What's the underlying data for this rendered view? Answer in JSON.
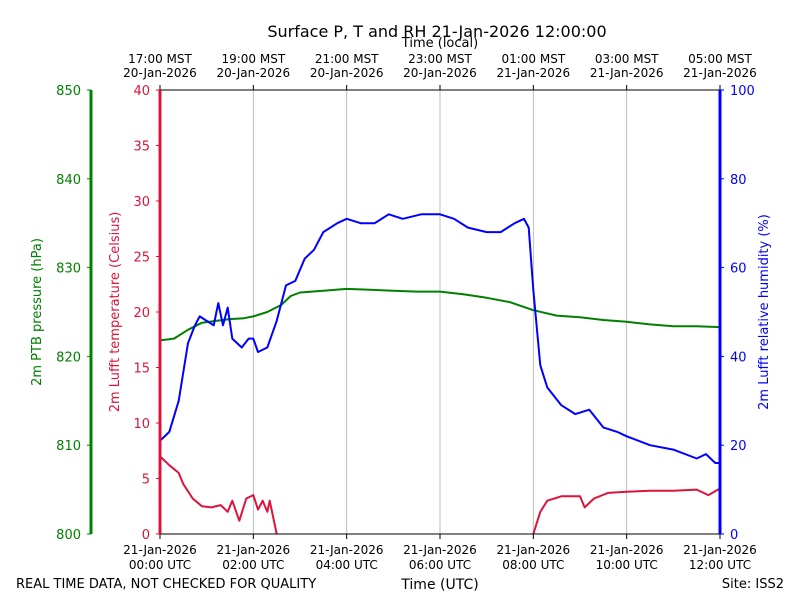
{
  "chart_data": {
    "type": "line",
    "title": "Surface P, T and RH 21-Jan-2026 12:00:00",
    "top_axis_label": "Time (local)",
    "bottom_axis_label": "Time (UTC)",
    "footer_left": "REAL TIME DATA, NOT CHECKED FOR QUALITY",
    "footer_right": "Site: ISS2",
    "x_range_hours_utc": [
      0,
      12
    ],
    "top_ticks": [
      {
        "hour": 0,
        "line1": "17:00 MST",
        "line2": "20-Jan-2026"
      },
      {
        "hour": 2,
        "line1": "19:00 MST",
        "line2": "20-Jan-2026"
      },
      {
        "hour": 4,
        "line1": "21:00 MST",
        "line2": "20-Jan-2026"
      },
      {
        "hour": 6,
        "line1": "23:00 MST",
        "line2": "20-Jan-2026"
      },
      {
        "hour": 8,
        "line1": "01:00 MST",
        "line2": "21-Jan-2026"
      },
      {
        "hour": 10,
        "line1": "03:00 MST",
        "line2": "21-Jan-2026"
      },
      {
        "hour": 12,
        "line1": "05:00 MST",
        "line2": "21-Jan-2026"
      }
    ],
    "bottom_ticks": [
      {
        "hour": 0,
        "line1": "21-Jan-2026",
        "line2": "00:00 UTC"
      },
      {
        "hour": 2,
        "line1": "21-Jan-2026",
        "line2": "02:00 UTC"
      },
      {
        "hour": 4,
        "line1": "21-Jan-2026",
        "line2": "04:00 UTC"
      },
      {
        "hour": 6,
        "line1": "21-Jan-2026",
        "line2": "06:00 UTC"
      },
      {
        "hour": 8,
        "line1": "21-Jan-2026",
        "line2": "08:00 UTC"
      },
      {
        "hour": 10,
        "line1": "21-Jan-2026",
        "line2": "10:00 UTC"
      },
      {
        "hour": 12,
        "line1": "21-Jan-2026",
        "line2": "12:00 UTC"
      }
    ],
    "axes": [
      {
        "key": "pressure",
        "label": "2m PTB pressure (hPa)",
        "color": "#008000",
        "range": [
          800,
          850
        ],
        "ticks": [
          800,
          810,
          820,
          830,
          840,
          850
        ]
      },
      {
        "key": "temperature",
        "label": "2m Lufft temperature (Celsius)",
        "color": "#dc143c",
        "range": [
          0,
          40
        ],
        "ticks": [
          0,
          5,
          10,
          15,
          20,
          25,
          30,
          35,
          40
        ]
      },
      {
        "key": "humidity",
        "label": "2m Lufft relative humidity (%)",
        "color": "#0000ff",
        "range": [
          0,
          100
        ],
        "ticks": [
          0,
          20,
          40,
          60,
          80,
          100
        ]
      }
    ],
    "series": [
      {
        "name": "2m PTB pressure",
        "axis": "pressure",
        "color": "#008000",
        "points": [
          [
            0,
            821.8
          ],
          [
            0.3,
            822
          ],
          [
            0.6,
            823
          ],
          [
            0.9,
            823.8
          ],
          [
            1.2,
            824
          ],
          [
            1.5,
            824.2
          ],
          [
            1.8,
            824.3
          ],
          [
            2.0,
            824.5
          ],
          [
            2.3,
            825
          ],
          [
            2.6,
            825.8
          ],
          [
            2.8,
            826.8
          ],
          [
            3.0,
            827.2
          ],
          [
            3.5,
            827.4
          ],
          [
            4.0,
            827.6
          ],
          [
            4.5,
            827.5
          ],
          [
            5.0,
            827.4
          ],
          [
            5.5,
            827.3
          ],
          [
            6.0,
            827.3
          ],
          [
            6.5,
            827
          ],
          [
            7.0,
            826.6
          ],
          [
            7.5,
            826.1
          ],
          [
            8.0,
            825.2
          ],
          [
            8.5,
            824.6
          ],
          [
            9.0,
            824.4
          ],
          [
            9.5,
            824.1
          ],
          [
            10.0,
            823.9
          ],
          [
            10.5,
            823.6
          ],
          [
            11.0,
            823.4
          ],
          [
            11.5,
            823.4
          ],
          [
            12.0,
            823.3
          ]
        ]
      },
      {
        "name": "2m Lufft temperature",
        "axis": "temperature",
        "color": "#dc143c",
        "segments": [
          [
            [
              0,
              7
            ],
            [
              0.2,
              6.2
            ],
            [
              0.4,
              5.5
            ],
            [
              0.5,
              4.5
            ],
            [
              0.7,
              3.2
            ],
            [
              0.9,
              2.5
            ],
            [
              1.1,
              2.4
            ],
            [
              1.3,
              2.6
            ],
            [
              1.45,
              2
            ],
            [
              1.55,
              3
            ],
            [
              1.7,
              1.2
            ],
            [
              1.85,
              3.2
            ],
            [
              2.0,
              3.5
            ],
            [
              2.1,
              2.2
            ],
            [
              2.2,
              3
            ],
            [
              2.3,
              2
            ],
            [
              2.35,
              3
            ],
            [
              2.5,
              0
            ]
          ],
          [
            [
              8.0,
              0
            ],
            [
              8.15,
              2
            ],
            [
              8.3,
              3
            ],
            [
              8.6,
              3.4
            ],
            [
              9.0,
              3.4
            ],
            [
              9.1,
              2.4
            ],
            [
              9.3,
              3.2
            ],
            [
              9.6,
              3.7
            ],
            [
              10.0,
              3.8
            ],
            [
              10.5,
              3.9
            ],
            [
              11.0,
              3.9
            ],
            [
              11.5,
              4
            ],
            [
              11.75,
              3.5
            ],
            [
              12,
              4.1
            ]
          ]
        ]
      },
      {
        "name": "2m Lufft relative humidity",
        "axis": "humidity",
        "color": "#0000ff",
        "points": [
          [
            0,
            21
          ],
          [
            0.2,
            23
          ],
          [
            0.4,
            30
          ],
          [
            0.6,
            43
          ],
          [
            0.75,
            47
          ],
          [
            0.85,
            49
          ],
          [
            1.0,
            48
          ],
          [
            1.15,
            47
          ],
          [
            1.25,
            52
          ],
          [
            1.35,
            47
          ],
          [
            1.45,
            51
          ],
          [
            1.55,
            44
          ],
          [
            1.75,
            42
          ],
          [
            1.9,
            44
          ],
          [
            2.0,
            44
          ],
          [
            2.1,
            41
          ],
          [
            2.3,
            42
          ],
          [
            2.5,
            48
          ],
          [
            2.7,
            56
          ],
          [
            2.9,
            57
          ],
          [
            3.1,
            62
          ],
          [
            3.3,
            64
          ],
          [
            3.5,
            68
          ],
          [
            3.8,
            70
          ],
          [
            4.0,
            71
          ],
          [
            4.3,
            70
          ],
          [
            4.6,
            70
          ],
          [
            4.9,
            72
          ],
          [
            5.2,
            71
          ],
          [
            5.6,
            72
          ],
          [
            6.0,
            72
          ],
          [
            6.3,
            71
          ],
          [
            6.6,
            69
          ],
          [
            7.0,
            68
          ],
          [
            7.3,
            68
          ],
          [
            7.6,
            70
          ],
          [
            7.8,
            71
          ],
          [
            7.9,
            69
          ],
          [
            8.0,
            55
          ],
          [
            8.15,
            38
          ],
          [
            8.3,
            33
          ],
          [
            8.6,
            29
          ],
          [
            8.9,
            27
          ],
          [
            9.2,
            28
          ],
          [
            9.5,
            24
          ],
          [
            9.8,
            23
          ],
          [
            10.0,
            22
          ],
          [
            10.5,
            20
          ],
          [
            11.0,
            19
          ],
          [
            11.5,
            17
          ],
          [
            11.7,
            18
          ],
          [
            11.9,
            16
          ],
          [
            12,
            16
          ]
        ]
      }
    ]
  }
}
